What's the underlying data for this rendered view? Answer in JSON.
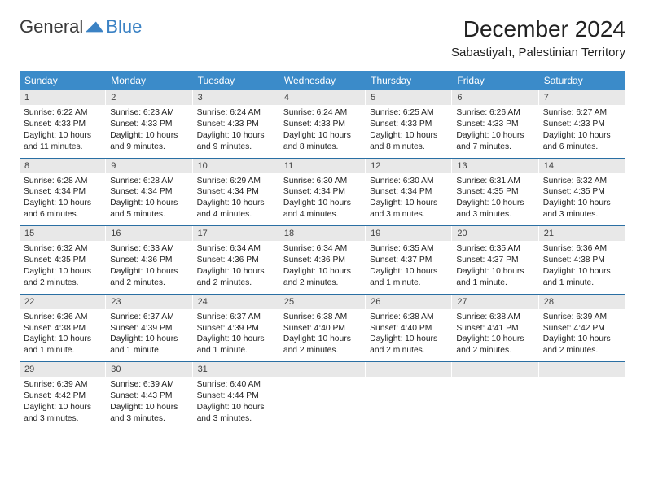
{
  "brand": {
    "word1": "General",
    "word2": "Blue"
  },
  "title": "December 2024",
  "location": "Sabastiyah, Palestinian Territory",
  "colors": {
    "header_bar": "#3b8bc9",
    "row_divider": "#2a6fa3",
    "daynum_bg": "#e8e8e8",
    "brand_blue": "#3b82c4",
    "text": "#222222"
  },
  "weekdays": [
    "Sunday",
    "Monday",
    "Tuesday",
    "Wednesday",
    "Thursday",
    "Friday",
    "Saturday"
  ],
  "weeks": [
    [
      {
        "n": "1",
        "sr": "Sunrise: 6:22 AM",
        "ss": "Sunset: 4:33 PM",
        "dl": "Daylight: 10 hours and 11 minutes."
      },
      {
        "n": "2",
        "sr": "Sunrise: 6:23 AM",
        "ss": "Sunset: 4:33 PM",
        "dl": "Daylight: 10 hours and 9 minutes."
      },
      {
        "n": "3",
        "sr": "Sunrise: 6:24 AM",
        "ss": "Sunset: 4:33 PM",
        "dl": "Daylight: 10 hours and 9 minutes."
      },
      {
        "n": "4",
        "sr": "Sunrise: 6:24 AM",
        "ss": "Sunset: 4:33 PM",
        "dl": "Daylight: 10 hours and 8 minutes."
      },
      {
        "n": "5",
        "sr": "Sunrise: 6:25 AM",
        "ss": "Sunset: 4:33 PM",
        "dl": "Daylight: 10 hours and 8 minutes."
      },
      {
        "n": "6",
        "sr": "Sunrise: 6:26 AM",
        "ss": "Sunset: 4:33 PM",
        "dl": "Daylight: 10 hours and 7 minutes."
      },
      {
        "n": "7",
        "sr": "Sunrise: 6:27 AM",
        "ss": "Sunset: 4:33 PM",
        "dl": "Daylight: 10 hours and 6 minutes."
      }
    ],
    [
      {
        "n": "8",
        "sr": "Sunrise: 6:28 AM",
        "ss": "Sunset: 4:34 PM",
        "dl": "Daylight: 10 hours and 6 minutes."
      },
      {
        "n": "9",
        "sr": "Sunrise: 6:28 AM",
        "ss": "Sunset: 4:34 PM",
        "dl": "Daylight: 10 hours and 5 minutes."
      },
      {
        "n": "10",
        "sr": "Sunrise: 6:29 AM",
        "ss": "Sunset: 4:34 PM",
        "dl": "Daylight: 10 hours and 4 minutes."
      },
      {
        "n": "11",
        "sr": "Sunrise: 6:30 AM",
        "ss": "Sunset: 4:34 PM",
        "dl": "Daylight: 10 hours and 4 minutes."
      },
      {
        "n": "12",
        "sr": "Sunrise: 6:30 AM",
        "ss": "Sunset: 4:34 PM",
        "dl": "Daylight: 10 hours and 3 minutes."
      },
      {
        "n": "13",
        "sr": "Sunrise: 6:31 AM",
        "ss": "Sunset: 4:35 PM",
        "dl": "Daylight: 10 hours and 3 minutes."
      },
      {
        "n": "14",
        "sr": "Sunrise: 6:32 AM",
        "ss": "Sunset: 4:35 PM",
        "dl": "Daylight: 10 hours and 3 minutes."
      }
    ],
    [
      {
        "n": "15",
        "sr": "Sunrise: 6:32 AM",
        "ss": "Sunset: 4:35 PM",
        "dl": "Daylight: 10 hours and 2 minutes."
      },
      {
        "n": "16",
        "sr": "Sunrise: 6:33 AM",
        "ss": "Sunset: 4:36 PM",
        "dl": "Daylight: 10 hours and 2 minutes."
      },
      {
        "n": "17",
        "sr": "Sunrise: 6:34 AM",
        "ss": "Sunset: 4:36 PM",
        "dl": "Daylight: 10 hours and 2 minutes."
      },
      {
        "n": "18",
        "sr": "Sunrise: 6:34 AM",
        "ss": "Sunset: 4:36 PM",
        "dl": "Daylight: 10 hours and 2 minutes."
      },
      {
        "n": "19",
        "sr": "Sunrise: 6:35 AM",
        "ss": "Sunset: 4:37 PM",
        "dl": "Daylight: 10 hours and 1 minute."
      },
      {
        "n": "20",
        "sr": "Sunrise: 6:35 AM",
        "ss": "Sunset: 4:37 PM",
        "dl": "Daylight: 10 hours and 1 minute."
      },
      {
        "n": "21",
        "sr": "Sunrise: 6:36 AM",
        "ss": "Sunset: 4:38 PM",
        "dl": "Daylight: 10 hours and 1 minute."
      }
    ],
    [
      {
        "n": "22",
        "sr": "Sunrise: 6:36 AM",
        "ss": "Sunset: 4:38 PM",
        "dl": "Daylight: 10 hours and 1 minute."
      },
      {
        "n": "23",
        "sr": "Sunrise: 6:37 AM",
        "ss": "Sunset: 4:39 PM",
        "dl": "Daylight: 10 hours and 1 minute."
      },
      {
        "n": "24",
        "sr": "Sunrise: 6:37 AM",
        "ss": "Sunset: 4:39 PM",
        "dl": "Daylight: 10 hours and 1 minute."
      },
      {
        "n": "25",
        "sr": "Sunrise: 6:38 AM",
        "ss": "Sunset: 4:40 PM",
        "dl": "Daylight: 10 hours and 2 minutes."
      },
      {
        "n": "26",
        "sr": "Sunrise: 6:38 AM",
        "ss": "Sunset: 4:40 PM",
        "dl": "Daylight: 10 hours and 2 minutes."
      },
      {
        "n": "27",
        "sr": "Sunrise: 6:38 AM",
        "ss": "Sunset: 4:41 PM",
        "dl": "Daylight: 10 hours and 2 minutes."
      },
      {
        "n": "28",
        "sr": "Sunrise: 6:39 AM",
        "ss": "Sunset: 4:42 PM",
        "dl": "Daylight: 10 hours and 2 minutes."
      }
    ],
    [
      {
        "n": "29",
        "sr": "Sunrise: 6:39 AM",
        "ss": "Sunset: 4:42 PM",
        "dl": "Daylight: 10 hours and 3 minutes."
      },
      {
        "n": "30",
        "sr": "Sunrise: 6:39 AM",
        "ss": "Sunset: 4:43 PM",
        "dl": "Daylight: 10 hours and 3 minutes."
      },
      {
        "n": "31",
        "sr": "Sunrise: 6:40 AM",
        "ss": "Sunset: 4:44 PM",
        "dl": "Daylight: 10 hours and 3 minutes."
      },
      null,
      null,
      null,
      null
    ]
  ]
}
